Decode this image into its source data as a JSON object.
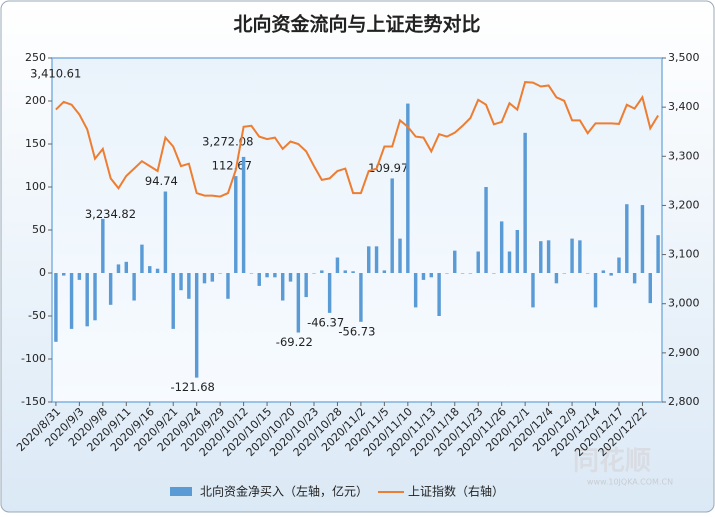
{
  "chart_data": {
    "type": "bar-line",
    "title": "北向资金流向与上证走势对比",
    "categories": [
      "2020/8/31",
      null,
      null,
      "2020/9/3",
      null,
      null,
      "2020/9/8",
      null,
      null,
      "2020/9/11",
      null,
      null,
      "2020/9/16",
      null,
      null,
      "2020/9/21",
      null,
      null,
      "2020/9/24",
      null,
      null,
      "2020/9/29",
      null,
      null,
      "2020/10/12",
      null,
      null,
      "2020/10/15",
      null,
      null,
      "2020/10/20",
      null,
      null,
      "2020/10/23",
      null,
      null,
      "2020/10/28",
      null,
      null,
      "2020/11/2",
      null,
      null,
      "2020/11/5",
      null,
      null,
      "2020/11/10",
      null,
      null,
      "2020/11/13",
      null,
      null,
      "2020/11/18",
      null,
      null,
      "2020/11/23",
      null,
      null,
      "2020/11/26",
      null,
      null,
      "2020/12/1",
      null,
      null,
      "2020/12/4",
      null,
      null,
      "2020/12/9",
      null,
      null,
      "2020/12/14",
      null,
      null,
      "2020/12/17",
      null,
      null,
      "2020/12/22",
      null,
      null
    ],
    "series": [
      {
        "name": "北向资金净买入（左轴，亿元）",
        "type": "bar",
        "axis": "y",
        "color": "#5b9bd5",
        "values": [
          -80,
          -3,
          -65,
          -8,
          -62,
          -55,
          63,
          -37,
          10,
          13,
          -32,
          33,
          8,
          5,
          94.74,
          -65,
          -20,
          -30,
          -121.68,
          -12,
          -10,
          0,
          -30,
          112.67,
          135,
          0,
          -15,
          -5,
          -5,
          -32,
          -10,
          -69.22,
          -28,
          0,
          3,
          -46.37,
          18,
          3,
          2,
          -56.73,
          31,
          31,
          3,
          109.97,
          40,
          197,
          -40,
          -8,
          -5,
          -50,
          0,
          26,
          0,
          0,
          25,
          100,
          0,
          60,
          25,
          50,
          163,
          -40,
          37,
          38,
          -12,
          0,
          40,
          38,
          0,
          -40,
          3,
          -3,
          18,
          80,
          -12,
          79,
          -35,
          44
        ],
        "value_labels": [
          null,
          null,
          null,
          null,
          null,
          null,
          null,
          null,
          null,
          null,
          null,
          null,
          null,
          null,
          "94.74",
          null,
          null,
          null,
          "-121.68",
          null,
          null,
          null,
          null,
          "112.67",
          null,
          null,
          null,
          null,
          null,
          null,
          null,
          "-69.22",
          null,
          null,
          null,
          "-46.37",
          null,
          null,
          null,
          "-56.73",
          null,
          null,
          null,
          "109.97",
          null,
          null,
          null,
          null,
          null,
          null,
          null,
          null,
          null,
          null,
          null,
          null,
          null,
          null,
          null,
          null,
          null,
          null,
          null,
          null,
          null,
          null,
          null,
          null,
          null,
          null,
          null,
          null,
          null,
          null,
          null,
          null,
          null,
          null
        ]
      },
      {
        "name": "上证指数（右轴）",
        "type": "line",
        "axis": "y2",
        "color": "#ed7d31",
        "values": [
          3395,
          3410.61,
          3405,
          3385,
          3355,
          3295,
          3315,
          3255,
          3234.82,
          3260,
          3275,
          3290,
          3280,
          3270,
          3338,
          3320,
          3280,
          3285,
          3225,
          3220,
          3220,
          3218,
          3225,
          3272.08,
          3360,
          3362,
          3340,
          3335,
          3338,
          3315,
          3330,
          3325,
          3310,
          3280,
          3252,
          3255,
          3270,
          3275,
          3225,
          3225,
          3270,
          3275,
          3320,
          3320,
          3373,
          3360,
          3340,
          3338,
          3310,
          3345,
          3340,
          3348,
          3362,
          3378,
          3415,
          3405,
          3365,
          3370,
          3408,
          3395,
          3451,
          3450,
          3442,
          3444,
          3420,
          3413,
          3373,
          3373,
          3347,
          3367,
          3367,
          3367,
          3366,
          3405,
          3397,
          3420,
          3357,
          3383
        ],
        "value_labels": [
          null,
          "3,410.61",
          null,
          null,
          null,
          null,
          null,
          null,
          "3,234.82",
          null,
          null,
          null,
          null,
          null,
          null,
          null,
          null,
          null,
          null,
          null,
          null,
          null,
          null,
          "3,272.08",
          null,
          null,
          null,
          null,
          null,
          null,
          null,
          null,
          null,
          null,
          null,
          null,
          null,
          null,
          null,
          null,
          null,
          null,
          null,
          null,
          null,
          null,
          null,
          null,
          null,
          null,
          null,
          null,
          null,
          null,
          null,
          null,
          null,
          null,
          null,
          null,
          null,
          null,
          null,
          null,
          null,
          null,
          null,
          null,
          null,
          null,
          null,
          null,
          null,
          null,
          null,
          null,
          null,
          null
        ]
      }
    ],
    "ylim": [
      -150,
      250
    ],
    "yticks": [
      -150,
      -100,
      -50,
      0,
      50,
      100,
      150,
      200,
      250
    ],
    "y2lim": [
      2800,
      3500
    ],
    "y2ticks": [
      {
        "value": 2800,
        "label": "2,800"
      },
      {
        "value": 2900,
        "label": "2,900"
      },
      {
        "value": 3000,
        "label": "3,000"
      },
      {
        "value": 3100,
        "label": "3,100"
      },
      {
        "value": 3200,
        "label": "3,200"
      },
      {
        "value": 3300,
        "label": "3,300"
      },
      {
        "value": 3400,
        "label": "3,400"
      },
      {
        "value": 3500,
        "label": "3,500"
      }
    ],
    "grid": false,
    "legend": "bottom",
    "watermark": {
      "logo": "同花顺",
      "url": "www.10JQKA.COM.CN"
    }
  }
}
